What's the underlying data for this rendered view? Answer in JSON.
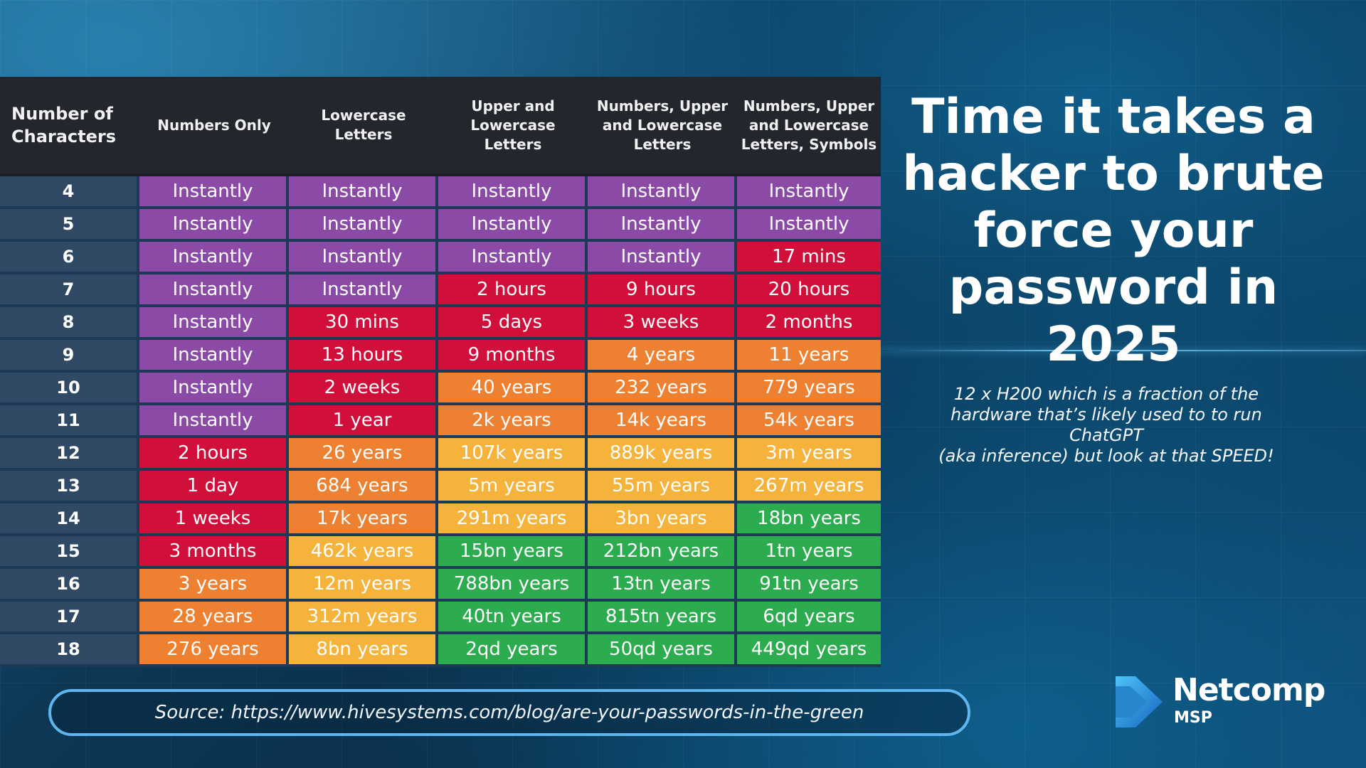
{
  "headline": "Time it takes a hacker to brute force your password in 2025",
  "note_lines": [
    "12 x H200 which is a fraction of the",
    "hardware that’s likely used to to run",
    "ChatGPT",
    "(aka inference) but look at that SPEED!"
  ],
  "source": "Source: https://www.hivesystems.com/blog/are-your-passwords-in-the-green",
  "logo": {
    "name": "Netcomp",
    "sub": "MSP"
  },
  "colors": {
    "purple": "#8a4aa6",
    "red": "#d0103a",
    "orange": "#ee8131",
    "yellow": "#f6b33b",
    "green": "#2cab4f"
  },
  "chart_data": {
    "type": "table",
    "columns": [
      [
        "Number of",
        "Characters"
      ],
      [
        "Numbers Only"
      ],
      [
        "Lowercase",
        "Letters"
      ],
      [
        "Upper and",
        "Lowercase",
        "Letters"
      ],
      [
        "Numbers, Upper",
        "and Lowercase",
        "Letters"
      ],
      [
        "Numbers, Upper",
        "and Lowercase",
        "Letters, Symbols"
      ]
    ],
    "rows": [
      {
        "chars": "4",
        "cells": [
          [
            "Instantly",
            "purple"
          ],
          [
            "Instantly",
            "purple"
          ],
          [
            "Instantly",
            "purple"
          ],
          [
            "Instantly",
            "purple"
          ],
          [
            "Instantly",
            "purple"
          ]
        ]
      },
      {
        "chars": "5",
        "cells": [
          [
            "Instantly",
            "purple"
          ],
          [
            "Instantly",
            "purple"
          ],
          [
            "Instantly",
            "purple"
          ],
          [
            "Instantly",
            "purple"
          ],
          [
            "Instantly",
            "purple"
          ]
        ]
      },
      {
        "chars": "6",
        "cells": [
          [
            "Instantly",
            "purple"
          ],
          [
            "Instantly",
            "purple"
          ],
          [
            "Instantly",
            "purple"
          ],
          [
            "Instantly",
            "purple"
          ],
          [
            "17 mins",
            "red"
          ]
        ]
      },
      {
        "chars": "7",
        "cells": [
          [
            "Instantly",
            "purple"
          ],
          [
            "Instantly",
            "purple"
          ],
          [
            "2 hours",
            "red"
          ],
          [
            "9 hours",
            "red"
          ],
          [
            "20 hours",
            "red"
          ]
        ]
      },
      {
        "chars": "8",
        "cells": [
          [
            "Instantly",
            "purple"
          ],
          [
            "30 mins",
            "red"
          ],
          [
            "5 days",
            "red"
          ],
          [
            "3 weeks",
            "red"
          ],
          [
            "2 months",
            "red"
          ]
        ]
      },
      {
        "chars": "9",
        "cells": [
          [
            "Instantly",
            "purple"
          ],
          [
            "13 hours",
            "red"
          ],
          [
            "9 months",
            "red"
          ],
          [
            "4 years",
            "orange"
          ],
          [
            "11 years",
            "orange"
          ]
        ]
      },
      {
        "chars": "10",
        "cells": [
          [
            "Instantly",
            "purple"
          ],
          [
            "2 weeks",
            "red"
          ],
          [
            "40 years",
            "orange"
          ],
          [
            "232 years",
            "orange"
          ],
          [
            "779 years",
            "orange"
          ]
        ]
      },
      {
        "chars": "11",
        "cells": [
          [
            "Instantly",
            "purple"
          ],
          [
            "1 year",
            "red"
          ],
          [
            "2k years",
            "orange"
          ],
          [
            "14k years",
            "orange"
          ],
          [
            "54k years",
            "orange"
          ]
        ]
      },
      {
        "chars": "12",
        "cells": [
          [
            "2 hours",
            "red"
          ],
          [
            "26 years",
            "orange"
          ],
          [
            "107k years",
            "yellow"
          ],
          [
            "889k years",
            "yellow"
          ],
          [
            "3m years",
            "yellow"
          ]
        ]
      },
      {
        "chars": "13",
        "cells": [
          [
            "1 day",
            "red"
          ],
          [
            "684 years",
            "orange"
          ],
          [
            "5m years",
            "yellow"
          ],
          [
            "55m years",
            "yellow"
          ],
          [
            "267m years",
            "yellow"
          ]
        ]
      },
      {
        "chars": "14",
        "cells": [
          [
            "1 weeks",
            "red"
          ],
          [
            "17k years",
            "orange"
          ],
          [
            "291m years",
            "yellow"
          ],
          [
            "3bn years",
            "yellow"
          ],
          [
            "18bn years",
            "green"
          ]
        ]
      },
      {
        "chars": "15",
        "cells": [
          [
            "3 months",
            "red"
          ],
          [
            "462k years",
            "yellow"
          ],
          [
            "15bn years",
            "green"
          ],
          [
            "212bn years",
            "green"
          ],
          [
            "1tn years",
            "green"
          ]
        ]
      },
      {
        "chars": "16",
        "cells": [
          [
            "3 years",
            "orange"
          ],
          [
            "12m years",
            "yellow"
          ],
          [
            "788bn years",
            "green"
          ],
          [
            "13tn years",
            "green"
          ],
          [
            "91tn years",
            "green"
          ]
        ]
      },
      {
        "chars": "17",
        "cells": [
          [
            "28 years",
            "orange"
          ],
          [
            "312m years",
            "yellow"
          ],
          [
            "40tn years",
            "green"
          ],
          [
            "815tn years",
            "green"
          ],
          [
            "6qd years",
            "green"
          ]
        ]
      },
      {
        "chars": "18",
        "cells": [
          [
            "276 years",
            "orange"
          ],
          [
            "8bn years",
            "yellow"
          ],
          [
            "2qd years",
            "green"
          ],
          [
            "50qd years",
            "green"
          ],
          [
            "449qd years",
            "green"
          ]
        ]
      }
    ]
  }
}
